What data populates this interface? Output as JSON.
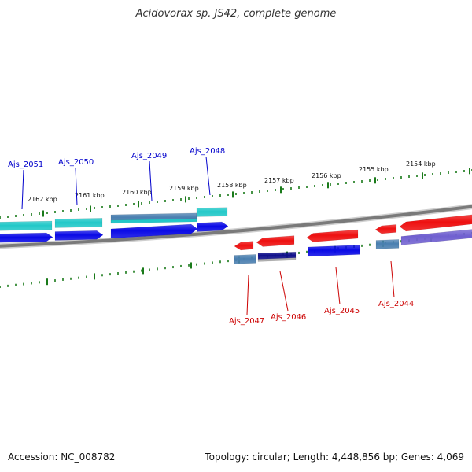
{
  "title": "Acidovorax sp. JS42, complete genome",
  "footer": {
    "accession": "Accession: NC_008782",
    "topology": "Topology: circular; Length: 4,448,856 bp; Genes: 4,069"
  },
  "colors": {
    "backbone": "#7a7a7a",
    "tick": "#1a7a1a",
    "forward_label": "#0000cc",
    "reverse_label": "#cc0000",
    "cyan_gene": "#22c8c8",
    "blue_gene": "#0a0ae6",
    "red_gene": "#ee1010",
    "steelblue_gene": "#4a7fb0",
    "navy_gene": "#10108a",
    "purple_gene": "#7060d0"
  },
  "scale_labels": [
    "2162 kbp",
    "2161 kbp",
    "2160 kbp",
    "2159 kbp",
    "2158 kbp",
    "2157 kbp",
    "2156 kbp",
    "2155 kbp",
    "2154 kbp"
  ],
  "forward_gene_labels": [
    "Ajs_2051",
    "Ajs_2050",
    "Ajs_2049",
    "Ajs_2048"
  ],
  "reverse_gene_labels": [
    "Ajs_2047",
    "Ajs_2046",
    "Ajs_2045",
    "Ajs_2044"
  ]
}
